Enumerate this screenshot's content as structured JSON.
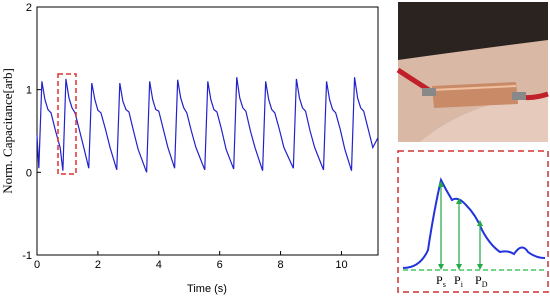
{
  "chart_data": {
    "type": "line",
    "x_label": "Time (s)",
    "y_label": "Norm. Capacitance[arb]",
    "xlim": [
      0,
      11.2
    ],
    "ylim": [
      -1,
      2
    ],
    "xticks": [
      0,
      2,
      4,
      6,
      8,
      10
    ],
    "yticks": [
      -1,
      0,
      1,
      2
    ],
    "series": [
      {
        "color": "#2222cc",
        "x": [
          0,
          0.06,
          0.16,
          0.26,
          0.36,
          0.46,
          0.61,
          0.76,
          0.85,
          0.95,
          1.05,
          1.15,
          1.25,
          1.4,
          1.55,
          1.7,
          1.8,
          1.9,
          2.0,
          2.1,
          2.25,
          2.4,
          2.62,
          2.72,
          2.82,
          2.92,
          3.02,
          3.17,
          3.32,
          3.6,
          3.7,
          3.8,
          3.9,
          4.0,
          4.15,
          4.3,
          4.52,
          4.62,
          4.72,
          4.82,
          4.92,
          5.07,
          5.22,
          5.51,
          5.61,
          5.71,
          5.81,
          5.91,
          6.06,
          6.21,
          6.46,
          6.56,
          6.66,
          6.76,
          6.86,
          7.01,
          7.16,
          7.41,
          7.51,
          7.61,
          7.71,
          7.81,
          7.96,
          8.11,
          8.42,
          8.52,
          8.62,
          8.72,
          8.82,
          8.97,
          9.12,
          9.41,
          9.51,
          9.61,
          9.71,
          9.81,
          9.96,
          10.11,
          10.33,
          10.43,
          10.53,
          10.63,
          10.73,
          10.88,
          11.03,
          11.2
        ],
        "values": [
          0.45,
          0.05,
          1.1,
          0.88,
          0.76,
          0.72,
          0.5,
          0.3,
          0.02,
          1.13,
          0.9,
          0.78,
          0.72,
          0.5,
          0.28,
          0.05,
          1.08,
          0.88,
          0.75,
          0.72,
          0.52,
          0.3,
          0.03,
          1.08,
          0.86,
          0.76,
          0.73,
          0.5,
          0.28,
          0.0,
          1.1,
          0.88,
          0.76,
          0.74,
          0.52,
          0.3,
          0.05,
          1.12,
          0.9,
          0.78,
          0.72,
          0.5,
          0.3,
          0.03,
          1.1,
          0.88,
          0.76,
          0.73,
          0.52,
          0.28,
          0.04,
          1.15,
          0.9,
          0.78,
          0.74,
          0.5,
          0.3,
          0.02,
          1.1,
          0.88,
          0.76,
          0.72,
          0.52,
          0.3,
          0.05,
          1.13,
          0.9,
          0.78,
          0.74,
          0.5,
          0.3,
          0.03,
          1.1,
          0.88,
          0.76,
          0.72,
          0.52,
          0.28,
          0.02,
          1.15,
          0.9,
          0.78,
          0.74,
          0.52,
          0.3,
          0.42
        ]
      }
    ],
    "inset_labels": [
      {
        "main": "P",
        "sub": "s"
      },
      {
        "main": "P",
        "sub": "i"
      },
      {
        "main": "P",
        "sub": "D"
      }
    ]
  }
}
